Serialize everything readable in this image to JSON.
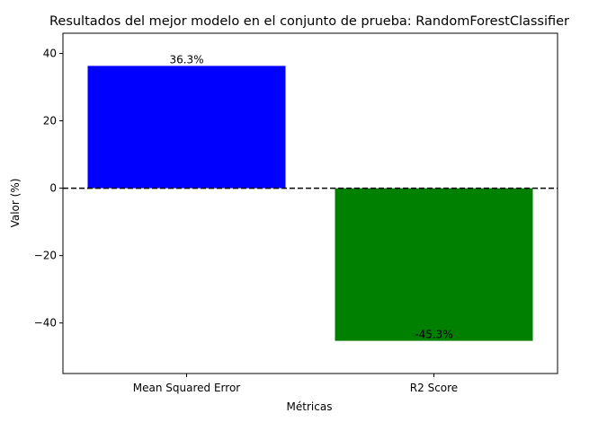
{
  "chart_data": {
    "type": "bar",
    "title": "Resultados del mejor modelo en el conjunto de prueba: RandomForestClassifier",
    "xlabel": "Métricas",
    "ylabel": "Valor (%)",
    "categories": [
      "Mean Squared Error",
      "R2 Score"
    ],
    "values": [
      36.3,
      -45.3
    ],
    "data_labels": [
      "36.3%",
      "-45.3%"
    ],
    "colors": [
      "#0000ff",
      "#008000"
    ],
    "ylim": [
      -55,
      46
    ],
    "yticks": [
      -40,
      -20,
      0,
      20,
      40
    ],
    "ytick_labels": [
      "−40",
      "−20",
      "0",
      "20",
      "40"
    ],
    "reference_line": {
      "y": 0,
      "style": "dashed",
      "color": "#000000"
    },
    "grid": false,
    "legend": "none"
  }
}
